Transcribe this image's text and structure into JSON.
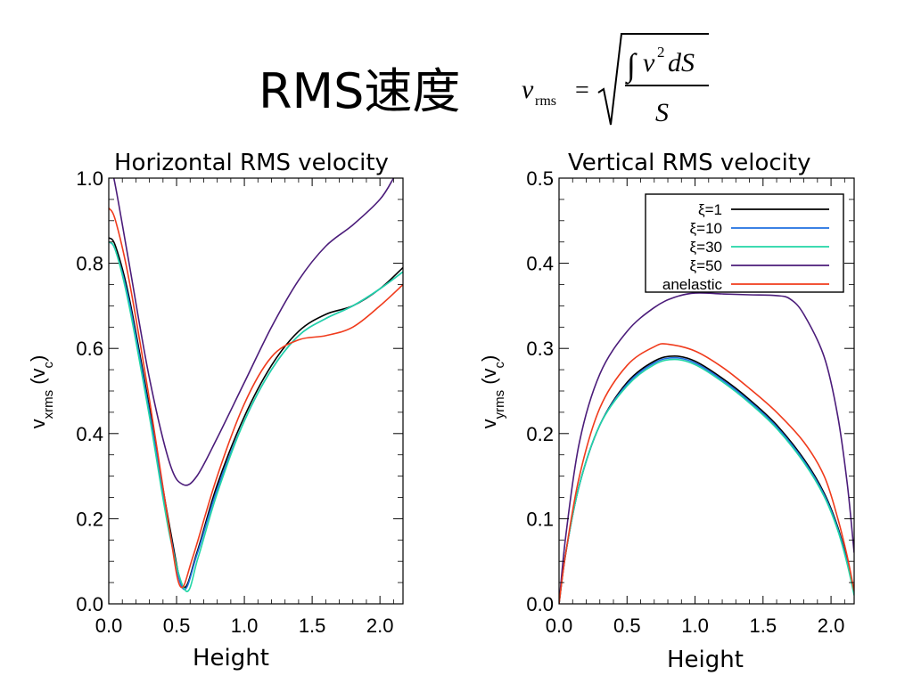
{
  "slide": {
    "title": "RMS速度"
  },
  "formula": {
    "lhs": "v",
    "lhs_sub": "rms",
    "eq": "=",
    "num_int": "∫",
    "num_v": "v",
    "num_exp": "2",
    "num_ds": "dS",
    "den": "S"
  },
  "colors": {
    "xi1": "#000000",
    "xi10": "#1f6fe0",
    "xi30": "#22d6a6",
    "xi50": "#4b1c7a",
    "anelastic": "#f03b1c"
  },
  "chart_data": [
    {
      "type": "line",
      "title": "Horizontal RMS velocity",
      "xlabel": "Height",
      "ylabel": "v",
      "ylabel_sub": "xrms",
      "ylabel_paren": "(v",
      "ylabel_paren_sub": "c",
      "ylabel_close": ")",
      "xlim": [
        0.0,
        2.17
      ],
      "ylim": [
        0.0,
        1.0
      ],
      "xticks": [
        "0.0",
        "0.5",
        "1.0",
        "1.5",
        "2.0"
      ],
      "xtick_values": [
        0.0,
        0.5,
        1.0,
        1.5,
        2.0
      ],
      "yticks": [
        "0.0",
        "0.2",
        "0.4",
        "0.6",
        "0.8",
        "1.0"
      ],
      "ytick_values": [
        0.0,
        0.2,
        0.4,
        0.6,
        0.8,
        1.0
      ],
      "legend": false,
      "series": [
        {
          "key": "xi1",
          "x": [
            0.0,
            0.05,
            0.15,
            0.3,
            0.45,
            0.55,
            0.65,
            0.8,
            1.0,
            1.2,
            1.4,
            1.6,
            1.8,
            2.0,
            2.17
          ],
          "y": [
            0.86,
            0.84,
            0.72,
            0.46,
            0.18,
            0.04,
            0.12,
            0.28,
            0.44,
            0.56,
            0.64,
            0.68,
            0.7,
            0.74,
            0.79
          ]
        },
        {
          "key": "xi10",
          "x": [
            0.0,
            0.05,
            0.15,
            0.3,
            0.45,
            0.55,
            0.65,
            0.8,
            1.0,
            1.2,
            1.4,
            1.6,
            1.8,
            2.0,
            2.17
          ],
          "y": [
            0.85,
            0.83,
            0.71,
            0.45,
            0.17,
            0.035,
            0.115,
            0.27,
            0.43,
            0.55,
            0.63,
            0.67,
            0.7,
            0.74,
            0.78
          ]
        },
        {
          "key": "xi30",
          "x": [
            0.0,
            0.05,
            0.15,
            0.3,
            0.45,
            0.57,
            0.66,
            0.8,
            1.0,
            1.2,
            1.4,
            1.6,
            1.8,
            2.0,
            2.17
          ],
          "y": [
            0.85,
            0.83,
            0.7,
            0.44,
            0.16,
            0.03,
            0.11,
            0.26,
            0.43,
            0.55,
            0.63,
            0.67,
            0.7,
            0.74,
            0.78
          ]
        },
        {
          "key": "xi50",
          "x": [
            0.0,
            0.05,
            0.15,
            0.3,
            0.45,
            0.55,
            0.65,
            0.8,
            1.0,
            1.2,
            1.4,
            1.6,
            1.8,
            2.0,
            2.1
          ],
          "y": [
            1.05,
            0.98,
            0.8,
            0.53,
            0.33,
            0.28,
            0.3,
            0.39,
            0.52,
            0.65,
            0.76,
            0.84,
            0.89,
            0.95,
            1.0
          ]
        },
        {
          "key": "anelastic",
          "x": [
            0.0,
            0.05,
            0.15,
            0.3,
            0.45,
            0.53,
            0.62,
            0.8,
            1.0,
            1.2,
            1.4,
            1.6,
            1.8,
            2.0,
            2.17
          ],
          "y": [
            0.93,
            0.9,
            0.76,
            0.48,
            0.17,
            0.04,
            0.11,
            0.3,
            0.47,
            0.58,
            0.62,
            0.63,
            0.65,
            0.7,
            0.75
          ]
        }
      ]
    },
    {
      "type": "line",
      "title": "Vertical RMS velocity",
      "xlabel": "Height",
      "ylabel": "v",
      "ylabel_sub": "yrms",
      "ylabel_paren": "(v",
      "ylabel_paren_sub": "c",
      "ylabel_close": ")",
      "xlim": [
        0.0,
        2.17
      ],
      "ylim": [
        0.0,
        0.5
      ],
      "xticks": [
        "0.0",
        "0.5",
        "1.0",
        "1.5",
        "2.0"
      ],
      "xtick_values": [
        0.0,
        0.5,
        1.0,
        1.5,
        2.0
      ],
      "yticks": [
        "0.0",
        "0.1",
        "0.2",
        "0.3",
        "0.4",
        "0.5"
      ],
      "ytick_values": [
        0.0,
        0.1,
        0.2,
        0.3,
        0.4,
        0.5
      ],
      "legend": true,
      "legend_placement": "top-right",
      "series": [
        {
          "key": "xi1",
          "name": "ξ=1",
          "x": [
            0.0,
            0.05,
            0.15,
            0.3,
            0.5,
            0.7,
            0.85,
            1.0,
            1.2,
            1.4,
            1.6,
            1.8,
            1.95,
            2.05,
            2.12,
            2.17
          ],
          "y": [
            0.0,
            0.06,
            0.14,
            0.21,
            0.26,
            0.285,
            0.291,
            0.285,
            0.265,
            0.24,
            0.21,
            0.17,
            0.13,
            0.09,
            0.05,
            0.015
          ]
        },
        {
          "key": "xi10",
          "name": "ξ=10",
          "x": [
            0.0,
            0.05,
            0.15,
            0.3,
            0.5,
            0.7,
            0.85,
            1.0,
            1.2,
            1.4,
            1.6,
            1.8,
            1.95,
            2.05,
            2.12,
            2.17
          ],
          "y": [
            0.0,
            0.06,
            0.14,
            0.21,
            0.258,
            0.283,
            0.289,
            0.283,
            0.263,
            0.238,
            0.208,
            0.168,
            0.128,
            0.088,
            0.048,
            0.012
          ]
        },
        {
          "key": "xi30",
          "name": "ξ=30",
          "x": [
            0.0,
            0.05,
            0.15,
            0.3,
            0.5,
            0.7,
            0.85,
            1.0,
            1.2,
            1.4,
            1.6,
            1.8,
            1.95,
            2.05,
            2.12,
            2.17
          ],
          "y": [
            0.0,
            0.06,
            0.14,
            0.21,
            0.256,
            0.281,
            0.287,
            0.281,
            0.261,
            0.236,
            0.206,
            0.166,
            0.126,
            0.086,
            0.046,
            0.01
          ]
        },
        {
          "key": "xi50",
          "name": "ξ=50",
          "x": [
            0.0,
            0.05,
            0.15,
            0.3,
            0.5,
            0.7,
            0.85,
            1.0,
            1.2,
            1.4,
            1.6,
            1.7,
            1.8,
            1.95,
            2.05,
            2.12,
            2.17
          ],
          "y": [
            0.0,
            0.08,
            0.19,
            0.27,
            0.32,
            0.348,
            0.36,
            0.365,
            0.364,
            0.363,
            0.362,
            0.358,
            0.34,
            0.29,
            0.22,
            0.14,
            0.06
          ]
        },
        {
          "key": "anelastic",
          "name": "anelastic",
          "x": [
            0.0,
            0.05,
            0.15,
            0.3,
            0.5,
            0.7,
            0.8,
            1.0,
            1.2,
            1.4,
            1.6,
            1.8,
            1.95,
            2.05,
            2.12,
            2.17
          ],
          "y": [
            0.0,
            0.06,
            0.15,
            0.23,
            0.28,
            0.302,
            0.305,
            0.297,
            0.278,
            0.253,
            0.225,
            0.19,
            0.15,
            0.1,
            0.055,
            0.015
          ]
        }
      ]
    }
  ]
}
